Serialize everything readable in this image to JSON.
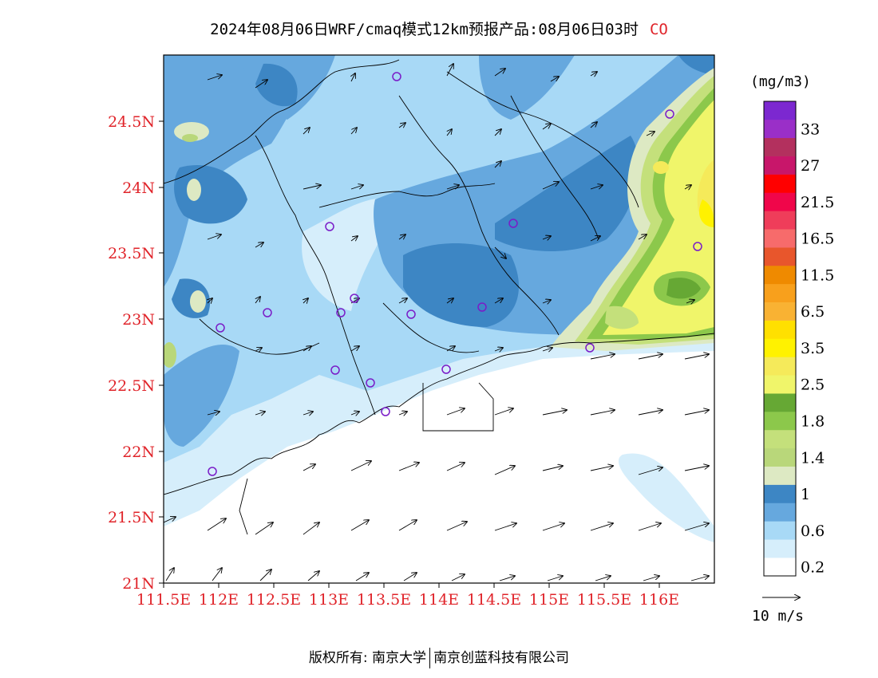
{
  "title": {
    "main": "2024年08月06日WRF/cmaq模式12km预报产品:08月06日03时",
    "species": "CO",
    "species_color": "#e0242a"
  },
  "colorbar": {
    "unit": "(mg/m3)",
    "bins": [
      {
        "label": "0.2",
        "color": "#ffffff"
      },
      {
        "label": "",
        "color": "#d6eefb"
      },
      {
        "label": "0.6",
        "color": "#a8d9f6"
      },
      {
        "label": "",
        "color": "#66a8de"
      },
      {
        "label": "1",
        "color": "#3d86c4"
      },
      {
        "label": "",
        "color": "#dde9c3"
      },
      {
        "label": "1.4",
        "color": "#b9d77a"
      },
      {
        "label": "",
        "color": "#c4e07b"
      },
      {
        "label": "1.8",
        "color": "#8cc84b"
      },
      {
        "label": "",
        "color": "#66a834"
      },
      {
        "label": "2.5",
        "color": "#f0f56a"
      },
      {
        "label": "",
        "color": "#f5ea5a"
      },
      {
        "label": "3.5",
        "color": "#fff200"
      },
      {
        "label": "",
        "color": "#ffe000"
      },
      {
        "label": "6.5",
        "color": "#f9b233"
      },
      {
        "label": "",
        "color": "#f8a01c"
      },
      {
        "label": "11.5",
        "color": "#ef8a00"
      },
      {
        "label": "",
        "color": "#e8562c"
      },
      {
        "label": "16.5",
        "color": "#f76b6b"
      },
      {
        "label": "",
        "color": "#ef3d5a"
      },
      {
        "label": "21.5",
        "color": "#f0064a"
      },
      {
        "label": "",
        "color": "#ff0000"
      },
      {
        "label": "27",
        "color": "#c8166a"
      },
      {
        "label": "",
        "color": "#b3305e"
      },
      {
        "label": "33",
        "color": "#9a2fc8"
      },
      {
        "label": "",
        "color": "#7c28d0"
      }
    ]
  },
  "axes": {
    "x_ticks": [
      "111.5E",
      "112E",
      "112.5E",
      "113E",
      "113.5E",
      "114E",
      "114.5E",
      "115E",
      "115.5E",
      "116E"
    ],
    "y_ticks": [
      "21N",
      "21.5N",
      "22N",
      "22.5N",
      "23N",
      "23.5N",
      "24N",
      "24.5N"
    ],
    "tick_color": "#e0242a"
  },
  "wind_legend": {
    "label": "10 m/s"
  },
  "footer": {
    "left": "版权所有: 南京大学",
    "right": "南京创蓝科技有限公司"
  }
}
